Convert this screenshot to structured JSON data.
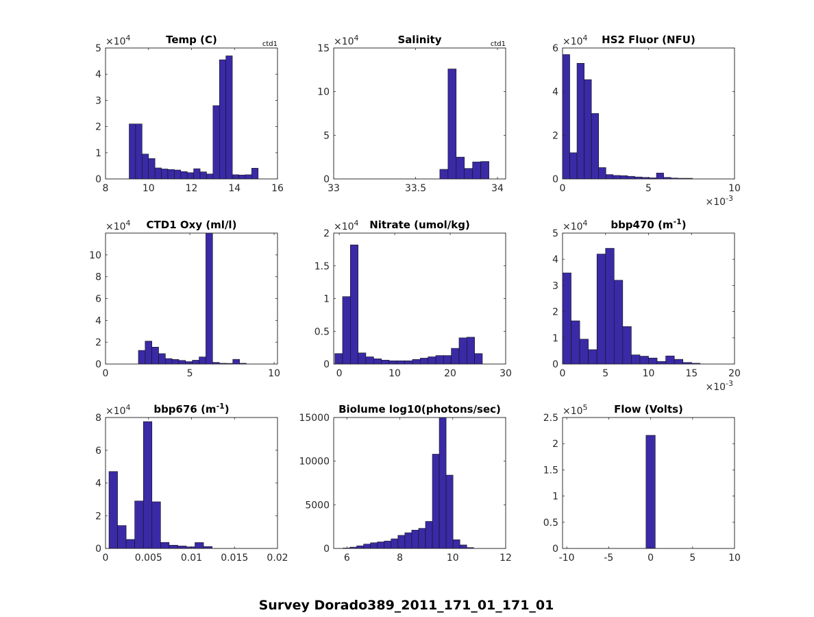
{
  "figure_title": "Survey Dorado389_2011_171_01_171_01",
  "chart_data": [
    {
      "type": "bar",
      "title": "Temp (C)",
      "title_sup": "",
      "note": "ctd1",
      "xlim": [
        8,
        16
      ],
      "ylim": [
        0,
        50000
      ],
      "xticks": [
        8,
        10,
        12,
        14,
        16
      ],
      "xtick_labels": [
        "8",
        "10",
        "12",
        "14",
        "16"
      ],
      "yticks": [
        0,
        10000,
        20000,
        30000,
        40000,
        50000
      ],
      "ytick_labels": [
        "0",
        "1",
        "2",
        "3",
        "4",
        "5"
      ],
      "y_exponent": "4",
      "x_exponent": "",
      "bin_start": 9.1,
      "bin_width": 0.3,
      "values": [
        21000,
        21000,
        9500,
        7800,
        4200,
        3800,
        3600,
        3400,
        2800,
        2400,
        3900,
        2700,
        1900,
        28000,
        45500,
        47000,
        1600,
        1500,
        1600,
        4100
      ]
    },
    {
      "type": "bar",
      "title": "Salinity",
      "title_sup": "",
      "note": "ctd1",
      "xlim": [
        33,
        34.05
      ],
      "ylim": [
        0,
        150000
      ],
      "xticks": [
        33,
        33.5,
        34
      ],
      "xtick_labels": [
        "33",
        "33.5",
        "34"
      ],
      "yticks": [
        0,
        50000,
        100000,
        150000
      ],
      "ytick_labels": [
        "0",
        "5",
        "10",
        "15"
      ],
      "y_exponent": "4",
      "x_exponent": "",
      "bin_start": 33.648,
      "bin_width": 0.05,
      "values": [
        11000,
        126000,
        25000,
        12000,
        19500,
        20000,
        0.0
      ]
    },
    {
      "type": "bar",
      "title": "HS2 Fluor (NFU)",
      "title_sup": "",
      "note": "",
      "xlim": [
        0,
        0.01
      ],
      "ylim": [
        0,
        60000
      ],
      "xticks": [
        0,
        0.005,
        0.01
      ],
      "xtick_labels": [
        "0",
        "5",
        "10"
      ],
      "yticks": [
        0,
        20000,
        40000,
        60000
      ],
      "ytick_labels": [
        "0",
        "2",
        "4",
        "6"
      ],
      "y_exponent": "4",
      "x_exponent": "-3",
      "bin_start": 0,
      "bin_width": 0.00042,
      "values": [
        57000,
        12000,
        53000,
        45500,
        30000,
        5200,
        2000,
        1600,
        1500,
        1200,
        900,
        700,
        500,
        2700,
        700,
        400,
        300,
        300
      ]
    },
    {
      "type": "bar",
      "title": "CTD1 Oxy (ml/l)",
      "title_sup": "",
      "note": "",
      "xlim": [
        0,
        10.2
      ],
      "ylim": [
        0,
        120000
      ],
      "xticks": [
        0,
        5,
        10
      ],
      "xtick_labels": [
        "0",
        "5",
        "10"
      ],
      "yticks": [
        0,
        20000,
        40000,
        60000,
        80000,
        100000
      ],
      "ytick_labels": [
        "0",
        "2",
        "4",
        "6",
        "8",
        "10"
      ],
      "y_exponent": "4",
      "x_exponent": "",
      "bin_start": 1.95,
      "bin_width": 0.4,
      "values": [
        12500,
        21000,
        15500,
        9500,
        5000,
        4200,
        3300,
        2200,
        3500,
        6500,
        120000,
        1500,
        700,
        600,
        4300,
        700
      ]
    },
    {
      "type": "bar",
      "title": "Nitrate (umol/kg)",
      "title_sup": "",
      "note": "",
      "xlim": [
        -1,
        30
      ],
      "ylim": [
        0,
        20000
      ],
      "xticks": [
        0,
        10,
        20,
        30
      ],
      "xtick_labels": [
        "0",
        "10",
        "20",
        "30"
      ],
      "yticks": [
        0,
        5000,
        10000,
        15000,
        20000
      ],
      "ytick_labels": [
        "0",
        "0.5",
        "1",
        "1.5",
        "2"
      ],
      "y_exponent": "4",
      "x_exponent": "",
      "bin_start": -0.8,
      "bin_width": 1.4,
      "values": [
        1600,
        10300,
        18200,
        1700,
        1100,
        800,
        600,
        500,
        500,
        500,
        700,
        900,
        1100,
        1300,
        1300,
        2400,
        4000,
        4100,
        1600
      ]
    },
    {
      "type": "bar",
      "title": "bbp470 (m",
      "title_sup": "-1",
      "note": "",
      "xlim": [
        0,
        0.02
      ],
      "ylim": [
        0,
        50000
      ],
      "xticks": [
        0,
        0.005,
        0.01,
        0.015,
        0.02
      ],
      "xtick_labels": [
        "0",
        "5",
        "10",
        "15",
        "20"
      ],
      "y_exponent": "4",
      "x_exponent": "-3",
      "yticks": [
        0,
        10000,
        20000,
        30000,
        40000,
        50000
      ],
      "ytick_labels": [
        "0",
        "1",
        "2",
        "3",
        "4",
        "5"
      ],
      "bin_start": 0,
      "bin_width": 0.001,
      "values": [
        34800,
        16500,
        9500,
        5500,
        42000,
        44200,
        32000,
        14300,
        3500,
        3000,
        2300,
        1000,
        3100,
        1800,
        600,
        300
      ]
    },
    {
      "type": "bar",
      "title": "bbp676 (m",
      "title_sup": "-1",
      "note": "",
      "xlim": [
        0,
        0.02
      ],
      "ylim": [
        0,
        80000
      ],
      "xticks": [
        0,
        0.005,
        0.01,
        0.015,
        0.02
      ],
      "xtick_labels": [
        "0",
        "0.005",
        "0.01",
        "0.015",
        "0.02"
      ],
      "yticks": [
        0,
        20000,
        40000,
        60000,
        80000
      ],
      "ytick_labels": [
        "0",
        "2",
        "4",
        "6",
        "8"
      ],
      "y_exponent": "4",
      "x_exponent": "",
      "bin_start": 0.0004,
      "bin_width": 0.001,
      "values": [
        47000,
        14000,
        5500,
        29000,
        77500,
        28500,
        3700,
        2000,
        1500,
        1000,
        3600,
        1200
      ]
    },
    {
      "type": "bar",
      "title": "Biolume log10(photons/sec)",
      "title_sup": "",
      "note": "",
      "xlim": [
        5.5,
        12
      ],
      "ylim": [
        0,
        15000
      ],
      "xticks": [
        6,
        8,
        10,
        12
      ],
      "xtick_labels": [
        "6",
        "8",
        "10",
        "12"
      ],
      "yticks": [
        0,
        5000,
        10000,
        15000
      ],
      "ytick_labels": [
        "0",
        "5000",
        "10000",
        "15000"
      ],
      "y_exponent": "",
      "x_exponent": "",
      "bin_start": 5.85,
      "bin_width": 0.26,
      "values": [
        50,
        150,
        300,
        500,
        650,
        750,
        850,
        1100,
        1500,
        1800,
        2100,
        2300,
        3100,
        10800,
        15000,
        8400,
        1000,
        400,
        100
      ]
    },
    {
      "type": "bar",
      "title": "Flow (Volts)",
      "title_sup": "",
      "note": "",
      "xlim": [
        -10.5,
        10
      ],
      "ylim": [
        0,
        250000
      ],
      "xticks": [
        -10,
        -5,
        0,
        5,
        10
      ],
      "xtick_labels": [
        "-10",
        "-5",
        "0",
        "5",
        "10"
      ],
      "yticks": [
        0,
        50000,
        100000,
        150000,
        200000,
        250000
      ],
      "ytick_labels": [
        "0",
        "0.5",
        "1",
        "1.5",
        "2",
        "2.5"
      ],
      "y_exponent": "5",
      "x_exponent": "",
      "bin_start": -0.55,
      "bin_width": 1.1,
      "values": [
        216000
      ]
    }
  ]
}
